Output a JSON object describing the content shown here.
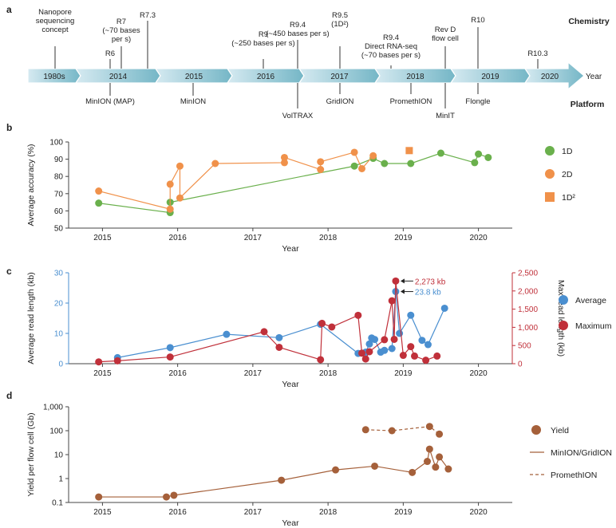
{
  "colors": {
    "timeline_light": "#d6eaf1",
    "timeline_dark": "#74b6c6",
    "green": "#6ab04c",
    "orange": "#f0914a",
    "blue": "#4a8fd0",
    "red": "#c0303a",
    "brown": "#a5603a",
    "axis": "#444444",
    "text": "#222222"
  },
  "panel_a": {
    "label": "a",
    "chemistry_title": "Chemistry",
    "platform_title": "Platform",
    "axis_end_label": "Year",
    "segments": [
      "1980s",
      "2014",
      "2015",
      "2016",
      "2017",
      "2018",
      "2019",
      "2020"
    ],
    "chemistry_events": [
      {
        "id": "nanopore-concept",
        "lines": [
          "Nanopore",
          "sequencing",
          "concept"
        ]
      },
      {
        "id": "r6",
        "lines": [
          "R6"
        ]
      },
      {
        "id": "r7",
        "lines": [
          "R7",
          "(~70 bases",
          "per s)"
        ]
      },
      {
        "id": "r73",
        "lines": [
          "R7.3"
        ]
      },
      {
        "id": "r9",
        "lines": [
          "R9",
          "(~250 bases per s)"
        ]
      },
      {
        "id": "r94",
        "lines": [
          "R9.4",
          "(~450 bases per s)"
        ]
      },
      {
        "id": "r95",
        "lines": [
          "R9.5",
          "(1D²)"
        ]
      },
      {
        "id": "r94-rna",
        "lines": [
          "R9.4",
          "Direct RNA-seq",
          "(~70 bases per s)"
        ]
      },
      {
        "id": "rev-d",
        "lines": [
          "Rev D",
          "flow cell"
        ]
      },
      {
        "id": "r10",
        "lines": [
          "R10"
        ]
      },
      {
        "id": "r103",
        "lines": [
          "R10.3"
        ]
      }
    ],
    "platform_events": [
      {
        "id": "minion-map",
        "label": "MinION (MAP)"
      },
      {
        "id": "minion",
        "label": "MinION"
      },
      {
        "id": "voltrax",
        "label": "VolTRAX"
      },
      {
        "id": "gridion",
        "label": "GridION"
      },
      {
        "id": "promethion",
        "label": "PromethION"
      },
      {
        "id": "minit",
        "label": "MinIT"
      },
      {
        "id": "flongle",
        "label": "Flongle"
      }
    ]
  },
  "chart_data": [
    {
      "panel": "b",
      "type": "scatter",
      "title": "",
      "xlabel": "Year",
      "ylabel": "Average accuracy (%)",
      "xlim": [
        2014.55,
        2020.45
      ],
      "ylim": [
        50,
        100
      ],
      "xticks": [
        2015,
        2016,
        2017,
        2018,
        2019,
        2020
      ],
      "yticks": [
        50,
        60,
        70,
        80,
        90,
        100
      ],
      "legend": "right",
      "series": [
        {
          "name": "1D",
          "color_key": "green",
          "marker": "circle",
          "points": [
            [
              2014.95,
              64.5
            ],
            [
              2015.9,
              59
            ],
            [
              2015.9,
              65
            ],
            [
              2018.35,
              86
            ],
            [
              2018.6,
              90.5
            ],
            [
              2018.75,
              87.5
            ],
            [
              2019.1,
              87.5
            ],
            [
              2019.5,
              93.5
            ],
            [
              2019.95,
              88
            ],
            [
              2020.0,
              93
            ],
            [
              2020.13,
              91
            ]
          ]
        },
        {
          "name": "2D",
          "color_key": "orange",
          "marker": "circle",
          "points": [
            [
              2014.95,
              71.5
            ],
            [
              2015.9,
              61
            ],
            [
              2015.9,
              75.5
            ],
            [
              2016.03,
              86
            ],
            [
              2016.03,
              67.5
            ],
            [
              2016.5,
              87.5
            ],
            [
              2017.42,
              88
            ],
            [
              2017.42,
              91
            ],
            [
              2017.9,
              84
            ],
            [
              2017.9,
              88.5
            ],
            [
              2018.35,
              94
            ],
            [
              2018.45,
              84.5
            ],
            [
              2018.6,
              92
            ]
          ]
        },
        {
          "name": "1D²",
          "color_key": "orange",
          "marker": "square",
          "points": [
            [
              2019.08,
              95
            ]
          ]
        }
      ]
    },
    {
      "panel": "c",
      "type": "line",
      "title": "",
      "xlabel": "Year",
      "ylabel": "Average read length (kb)",
      "ylabel_right": "Max read length (kb)",
      "xlim": [
        2014.55,
        2020.45
      ],
      "ylim": [
        0,
        30
      ],
      "ylim_right": [
        0,
        2500
      ],
      "xticks": [
        2015,
        2016,
        2017,
        2018,
        2019,
        2020
      ],
      "yticks": [
        0,
        10,
        20,
        30
      ],
      "yticks_right": [
        0,
        500,
        1000,
        1500,
        2000,
        2500
      ],
      "yticklabels_right": [
        "0",
        "500",
        "1,000",
        "1,500",
        "2,000",
        "2,500"
      ],
      "legend": "right",
      "series": [
        {
          "name": "Average",
          "color_key": "blue",
          "axis": "left",
          "points": [
            [
              2015.2,
              2
            ],
            [
              2015.9,
              5.3
            ],
            [
              2016.65,
              9.7
            ],
            [
              2017.35,
              8.6
            ],
            [
              2017.9,
              13
            ],
            [
              2018.4,
              3.4
            ],
            [
              2018.5,
              3.8
            ],
            [
              2018.55,
              6.5
            ],
            [
              2018.58,
              8.5
            ],
            [
              2018.62,
              8
            ],
            [
              2018.7,
              3.8
            ],
            [
              2018.75,
              4.4
            ],
            [
              2018.85,
              5
            ],
            [
              2018.9,
              23.8
            ],
            [
              2018.95,
              10
            ],
            [
              2019.1,
              16
            ],
            [
              2019.25,
              7.7
            ],
            [
              2019.33,
              6.3
            ],
            [
              2019.55,
              18.3
            ]
          ]
        },
        {
          "name": "Maximum",
          "color_key": "red",
          "axis": "right",
          "points": [
            [
              2014.95,
              50
            ],
            [
              2015.2,
              80
            ],
            [
              2015.9,
              185
            ],
            [
              2017.15,
              880
            ],
            [
              2017.35,
              450
            ],
            [
              2017.9,
              110
            ],
            [
              2017.92,
              1110
            ],
            [
              2018.05,
              1010
            ],
            [
              2018.4,
              1330
            ],
            [
              2018.45,
              290
            ],
            [
              2018.5,
              130
            ],
            [
              2018.55,
              330
            ],
            [
              2018.75,
              660
            ],
            [
              2018.85,
              1730
            ],
            [
              2018.88,
              670
            ],
            [
              2018.9,
              2273
            ],
            [
              2019.0,
              230
            ],
            [
              2019.1,
              470
            ],
            [
              2019.15,
              210
            ],
            [
              2019.3,
              95
            ],
            [
              2019.45,
              210
            ]
          ]
        }
      ],
      "annotations": [
        {
          "text": "2,273 kb",
          "x": 2018.9,
          "y_right": 2273,
          "color_key": "red"
        },
        {
          "text": "23.8 kb",
          "x": 2018.9,
          "y": 23.8,
          "color_key": "blue"
        }
      ]
    },
    {
      "panel": "d",
      "type": "line",
      "title": "",
      "xlabel": "Year",
      "ylabel": "Yield per flow cell (Gb)",
      "yscale": "log",
      "xlim": [
        2014.55,
        2020.45
      ],
      "ylim": [
        0.1,
        1000
      ],
      "xticks": [
        2015,
        2016,
        2017,
        2018,
        2019,
        2020
      ],
      "yticks": [
        0.1,
        1,
        10,
        100,
        1000
      ],
      "yticklabels": [
        "0.1",
        "1",
        "10",
        "100",
        "1,000"
      ],
      "legend": "right",
      "legend_entries": [
        {
          "name": "Yield",
          "kind": "marker"
        },
        {
          "name": "MinION/GridION",
          "kind": "solid"
        },
        {
          "name": "PromethION",
          "kind": "dashed"
        }
      ],
      "series": [
        {
          "name": "MinION/GridION",
          "color_key": "brown",
          "style": "solid",
          "points": [
            [
              2014.95,
              0.17
            ],
            [
              2015.85,
              0.17
            ],
            [
              2015.95,
              0.2
            ],
            [
              2017.38,
              0.85
            ],
            [
              2018.1,
              2.3
            ],
            [
              2018.62,
              3.3
            ],
            [
              2019.12,
              1.8
            ],
            [
              2019.32,
              5.2
            ],
            [
              2019.35,
              17
            ],
            [
              2019.43,
              3
            ],
            [
              2019.48,
              8
            ],
            [
              2019.6,
              2.5
            ]
          ]
        },
        {
          "name": "PromethION",
          "color_key": "brown",
          "style": "dashed",
          "points": [
            [
              2018.5,
              110
            ],
            [
              2018.85,
              100
            ],
            [
              2019.35,
              150
            ],
            [
              2019.48,
              72
            ]
          ]
        }
      ]
    }
  ]
}
